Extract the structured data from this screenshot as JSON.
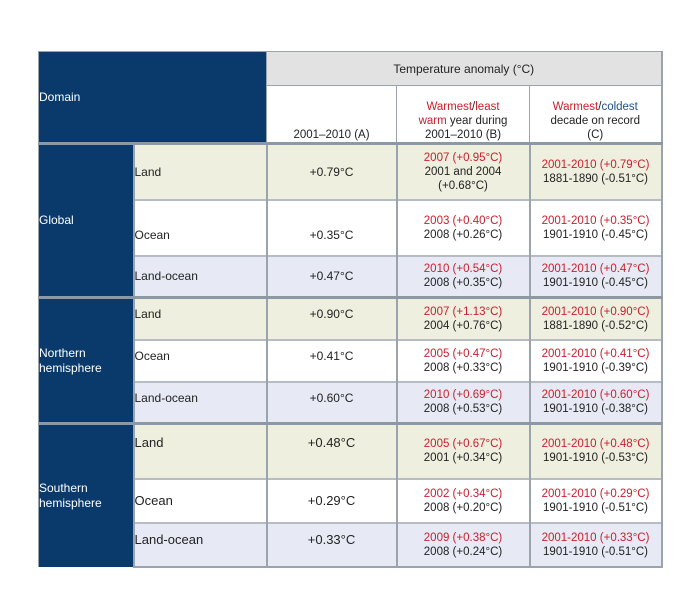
{
  "header": {
    "domain": "Domain",
    "temp_anomaly": "Temperature anomaly (°C)",
    "col_a": "2001–2010 (A)",
    "col_b": {
      "warmest": "Warmest",
      "sep": "/",
      "least": "least",
      "rest1": "warm",
      "rest2": "year during",
      "rest3": "2001–2010 (B)"
    },
    "col_c": {
      "warmest": "Warmest",
      "sep": "/",
      "coldest": "coldest",
      "rest1": "decade on record",
      "rest2": "(C)"
    }
  },
  "colors": {
    "navy": "#0a3a6b",
    "warm": "#c8202f",
    "cold": "#1f4e8c"
  },
  "groups": [
    {
      "name": "Global",
      "rows": [
        {
          "type": "Land",
          "a": "+0.79°C",
          "b_warm": "2007 (+0.95°C)",
          "b_least": "2001 and 2004",
          "b_least2": "(+0.68°C)",
          "c_warm": "2001-2010 (+0.79°C)",
          "c_cold": "1881-1890 (-0.51°C)"
        },
        {
          "type": "Ocean",
          "a": "+0.35°C",
          "b_warm": "2003 (+0.40°C)",
          "b_least": "2008 (+0.26°C)",
          "c_warm": "2001-2010 (+0.35°C)",
          "c_cold": "1901-1910 (-0.45°C)"
        },
        {
          "type": "Land-ocean",
          "a": "+0.47°C",
          "b_warm": "2010 (+0.54°C)",
          "b_least": "2008 (+0.35°C)",
          "c_warm": "2001-2010 (+0.47°C)",
          "c_cold": "1901-1910 (-0.45°C)"
        }
      ]
    },
    {
      "name": "Northern hemisphere",
      "name1": "Northern",
      "name2": "hemisphere",
      "rows": [
        {
          "type": "Land",
          "a": "+0.90°C",
          "b_warm": "2007 (+1.13°C)",
          "b_least": "2004 (+0.76°C)",
          "c_warm": "2001-2010 (+0.90°C)",
          "c_cold": "1881-1890 (-0.52°C)"
        },
        {
          "type": "Ocean",
          "a": "+0.41°C",
          "b_warm": "2005 (+0.47°C)",
          "b_least": "2008 (+0.33°C)",
          "c_warm": "2001-2010 (+0.41°C)",
          "c_cold": "1901-1910 (-0.39°C)"
        },
        {
          "type": "Land-ocean",
          "a": "+0.60°C",
          "b_warm": "2010 (+0.69°C)",
          "b_least": "2008 (+0.53°C)",
          "c_warm": "2001-2010 (+0.60°C)",
          "c_cold": "1901-1910 (-0.38°C)"
        }
      ]
    },
    {
      "name": "Southern hemisphere",
      "name1": "Southern",
      "name2": "hemisphere",
      "rows": [
        {
          "type": "Land",
          "a": "+0.48°C",
          "b_warm": "2005 (+0.67°C)",
          "b_least": "2001 (+0.34°C)",
          "c_warm": "2001-2010 (+0.48°C)",
          "c_cold": "1901-1910 (-0.53°C)"
        },
        {
          "type": "Ocean",
          "a": "+0.29°C",
          "b_warm": "2002 (+0.34°C)",
          "b_least": "2008 (+0.20°C)",
          "c_warm": "2001-2010 (+0.29°C)",
          "c_cold": "1901-1910 (-0.51°C)"
        },
        {
          "type": "Land-ocean",
          "a": "+0.33°C",
          "b_warm": "2009 (+0.38°C)",
          "b_least": "2008 (+0.24°C)",
          "c_warm": "2001-2010 (+0.33°C)",
          "c_cold": "1901-1910 (-0.51°C)"
        }
      ]
    }
  ]
}
